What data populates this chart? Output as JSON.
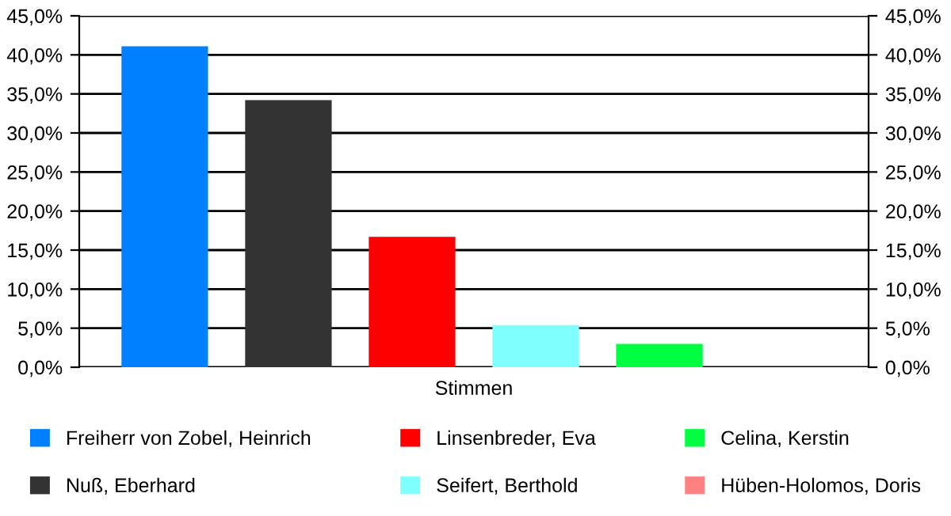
{
  "chart_data": {
    "type": "bar",
    "categories": [
      "Stimmen"
    ],
    "series": [
      {
        "name": "Freiherr von Zobel, Heinrich",
        "color": "#0080ff",
        "values": [
          41.1
        ]
      },
      {
        "name": "Nuß, Eberhard",
        "color": "#333333",
        "values": [
          34.2
        ]
      },
      {
        "name": "Linsenbreder, Eva",
        "color": "#ff0000",
        "values": [
          16.7
        ]
      },
      {
        "name": "Seifert, Berthold",
        "color": "#80ffff",
        "values": [
          5.4
        ]
      },
      {
        "name": "Celina, Kerstin",
        "color": "#00ff40",
        "values": [
          3.0
        ]
      },
      {
        "name": "Hüben-Holomos, Doris",
        "color": "#ff8080",
        "values": [
          0
        ]
      }
    ],
    "ylim": [
      0,
      45
    ],
    "yticks": [
      {
        "value": 0,
        "label": "0,0%"
      },
      {
        "value": 5,
        "label": "5,0%"
      },
      {
        "value": 10,
        "label": "10,0%"
      },
      {
        "value": 15,
        "label": "15,0%"
      },
      {
        "value": 20,
        "label": "20,0%"
      },
      {
        "value": 25,
        "label": "25,0%"
      },
      {
        "value": 30,
        "label": "30,0%"
      },
      {
        "value": 35,
        "label": "35,0%"
      },
      {
        "value": 40,
        "label": "40,0%"
      },
      {
        "value": 45,
        "label": "45,0%"
      }
    ],
    "grid": "y",
    "legend": "bottom"
  }
}
